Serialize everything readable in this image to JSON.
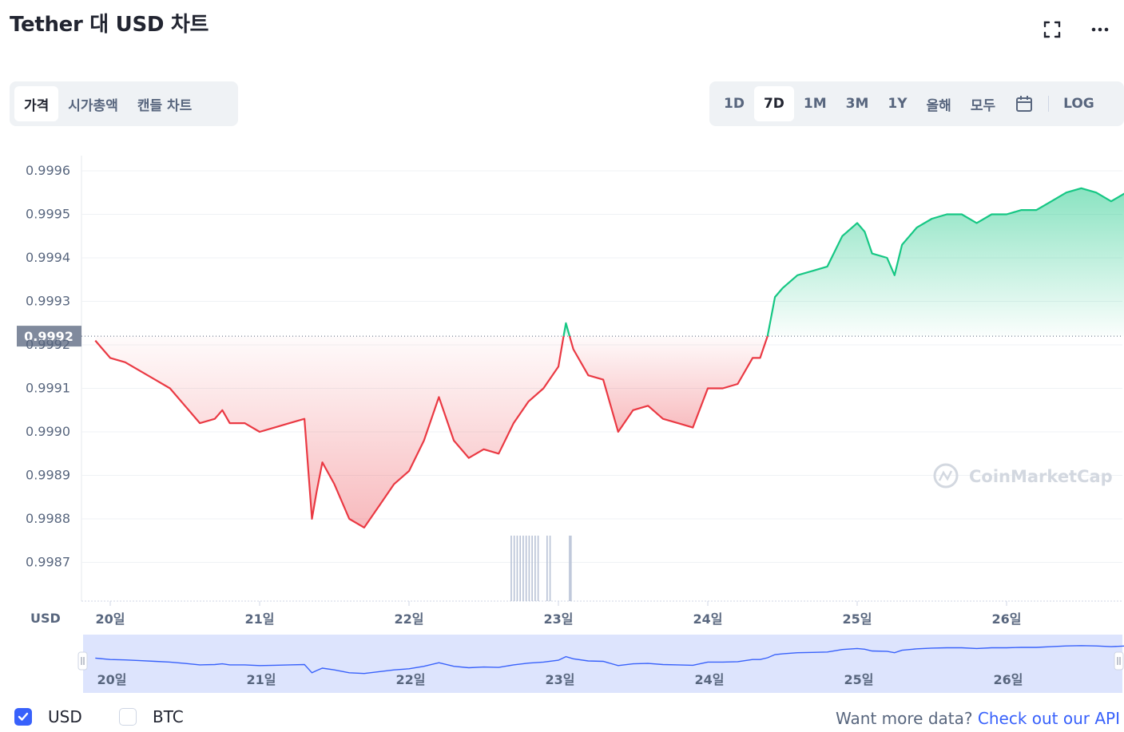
{
  "title": "Tether 대 USD 차트",
  "header_icons": [
    "fullscreen-icon",
    "more-icon"
  ],
  "view_tabs": [
    {
      "label": "가격",
      "active": true
    },
    {
      "label": "시가총액",
      "active": false
    },
    {
      "label": "캔들 차트",
      "active": false
    }
  ],
  "range_tabs": [
    {
      "label": "1D",
      "active": false
    },
    {
      "label": "7D",
      "active": true
    },
    {
      "label": "1M",
      "active": false
    },
    {
      "label": "3M",
      "active": false
    },
    {
      "label": "1Y",
      "active": false
    },
    {
      "label": "올해",
      "active": false
    },
    {
      "label": "모두",
      "active": false
    }
  ],
  "calendar_icon": "calendar-icon",
  "log_label": "LOG",
  "colors": {
    "up": "#16c784",
    "down": "#ea3943",
    "navigator_line": "#3861fb",
    "navigator_fill": "#dde4fd",
    "axis_text": "#58667e"
  },
  "chart_data": {
    "type": "line",
    "y_ticks": [
      "0.9987",
      "0.9988",
      "0.9989",
      "0.9990",
      "0.9991",
      "0.9992",
      "0.9993",
      "0.9994",
      "0.9995",
      "0.9996"
    ],
    "ylim": [
      0.99861,
      0.99965
    ],
    "y_unit_label": "USD",
    "x_ticks": [
      "20일",
      "21일",
      "22일",
      "23일",
      "24일",
      "25일",
      "26일"
    ],
    "xlim": [
      19.9,
      26.8
    ],
    "reference_value": 0.99922,
    "reference_label": "0.9992",
    "series": [
      {
        "x": [
          19.9,
          19.95,
          20.0,
          20.1,
          20.2,
          20.3,
          20.4,
          20.5,
          20.6,
          20.7,
          20.75,
          20.8,
          20.9,
          21.0,
          21.1,
          21.2,
          21.3,
          21.35,
          21.38,
          21.42,
          21.5,
          21.6,
          21.7,
          21.8,
          21.9,
          22.0,
          22.1,
          22.2,
          22.3,
          22.4,
          22.5,
          22.6,
          22.7,
          22.8,
          22.9,
          23.0,
          23.05,
          23.1,
          23.2,
          23.3,
          23.4,
          23.5,
          23.6,
          23.7,
          23.8,
          23.9,
          24.0,
          24.1,
          24.2,
          24.3,
          24.35,
          24.4,
          24.45,
          24.5,
          24.6,
          24.7,
          24.8,
          24.9,
          25.0,
          25.05,
          25.1,
          25.2,
          25.25,
          25.3,
          25.4,
          25.5,
          25.6,
          25.7,
          25.8,
          25.9,
          26.0,
          26.1,
          26.2,
          26.3,
          26.4,
          26.5,
          26.6,
          26.7,
          26.8
        ],
        "y": [
          0.99921,
          0.99919,
          0.99917,
          0.99916,
          0.99914,
          0.99912,
          0.9991,
          0.99906,
          0.99902,
          0.99903,
          0.99905,
          0.99902,
          0.99902,
          0.999,
          0.99901,
          0.99902,
          0.99903,
          0.9988,
          0.99886,
          0.99893,
          0.99888,
          0.9988,
          0.99878,
          0.99883,
          0.99888,
          0.99891,
          0.99898,
          0.99908,
          0.99898,
          0.99894,
          0.99896,
          0.99895,
          0.99902,
          0.99907,
          0.9991,
          0.99915,
          0.99925,
          0.99919,
          0.99913,
          0.99912,
          0.999,
          0.99905,
          0.99906,
          0.99903,
          0.99902,
          0.99901,
          0.9991,
          0.9991,
          0.99911,
          0.99917,
          0.99917,
          0.99922,
          0.99931,
          0.99933,
          0.99936,
          0.99937,
          0.99938,
          0.99945,
          0.99948,
          0.99946,
          0.99941,
          0.9994,
          0.99936,
          0.99943,
          0.99947,
          0.99949,
          0.9995,
          0.9995,
          0.99948,
          0.9995,
          0.9995,
          0.99951,
          0.99951,
          0.99953,
          0.99955,
          0.99956,
          0.99955,
          0.99953,
          0.99955
        ]
      }
    ],
    "volume_x": [
      22.68,
      22.7,
      22.72,
      22.74,
      22.76,
      22.78,
      22.8,
      22.82,
      22.84,
      22.86,
      22.92,
      22.94,
      23.07,
      23.08
    ],
    "navigator_x_ticks": [
      "20일",
      "21일",
      "22일",
      "23일",
      "24일",
      "25일",
      "26일"
    ],
    "watermark": "CoinMarketCap",
    "grid": true
  },
  "currency_options": [
    {
      "label": "USD",
      "checked": true
    },
    {
      "label": "BTC",
      "checked": false
    }
  ],
  "api_prompt": "Want more data?",
  "api_link": "Check out our API"
}
